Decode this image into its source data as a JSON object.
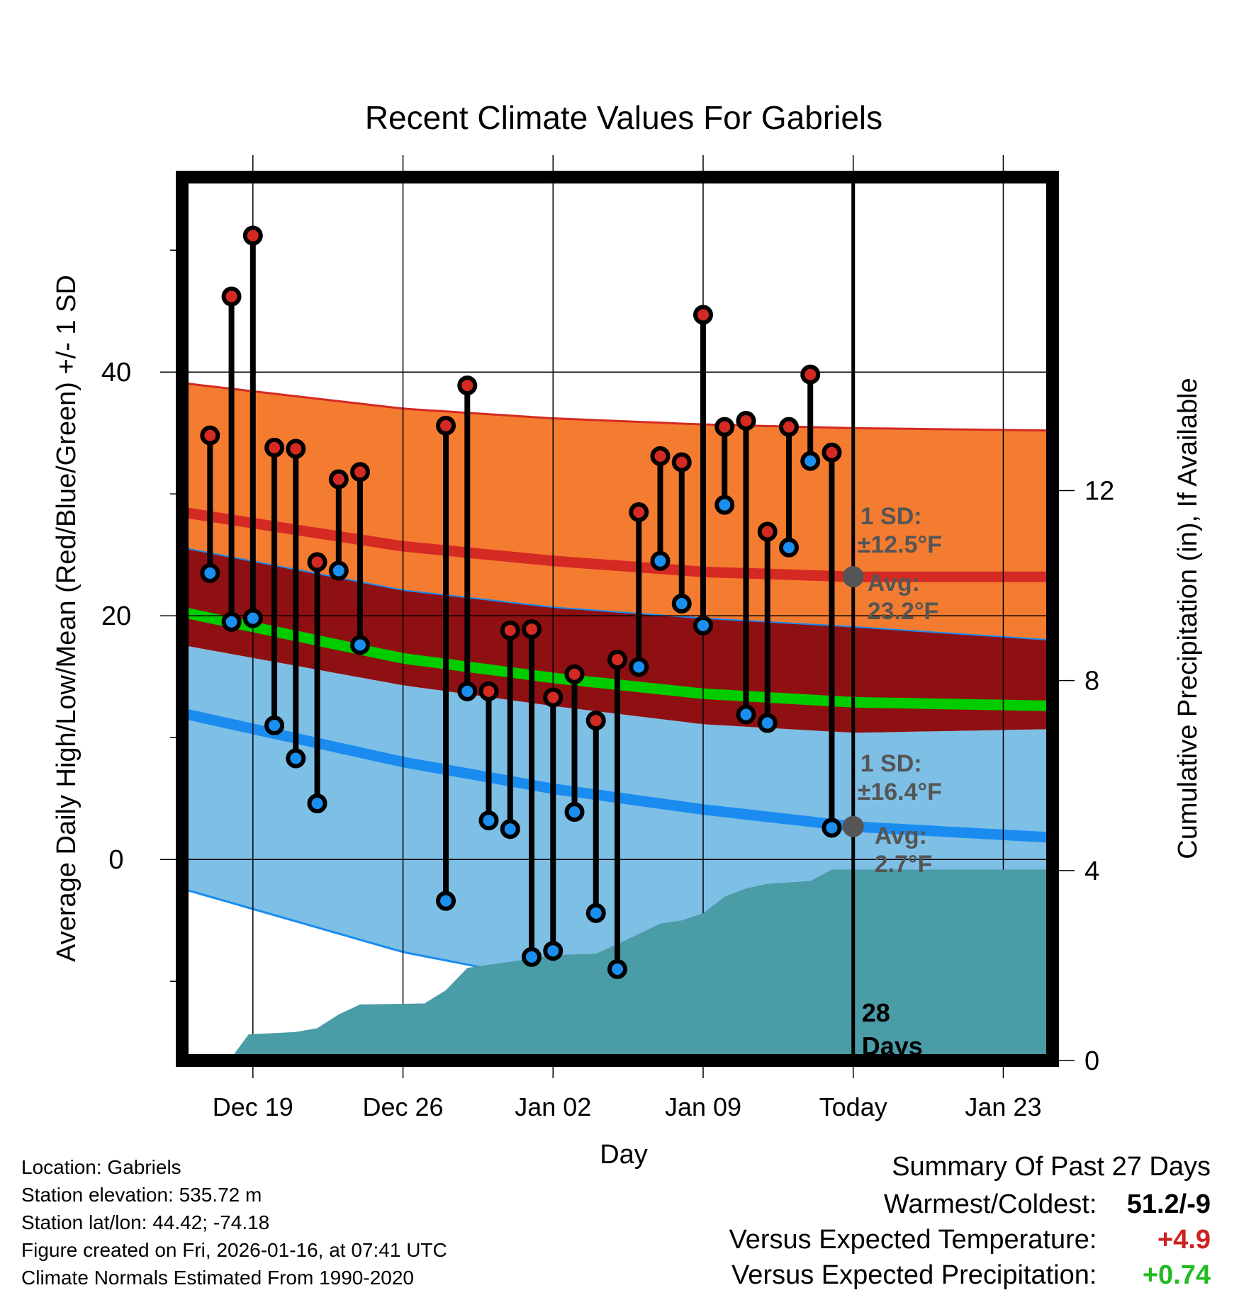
{
  "chart_data": {
    "type": "line",
    "title": "Recent Climate Values For Gabriels",
    "xlabel": "Day",
    "ylabel_left": "Average Daily High/Low/Mean (Red/Blue/Green) +/- 1 SD",
    "ylabel_right": "Cumulative Precipitation (in), If Available",
    "x_day_range": [
      -3.3,
      37.3
    ],
    "ylim_temp": [
      -16.5,
      56
    ],
    "ylim_precip": [
      0,
      18.6
    ],
    "x_ticks": [
      {
        "day": 0,
        "label": "Dec 19"
      },
      {
        "day": 7,
        "label": "Dec 26"
      },
      {
        "day": 14,
        "label": "Jan 02"
      },
      {
        "day": 21,
        "label": "Jan 09"
      },
      {
        "day": 28,
        "label": "Today"
      },
      {
        "day": 35,
        "label": "Jan 23"
      }
    ],
    "y_ticks_left": [
      0,
      20,
      40
    ],
    "y_minor_left": [
      -10,
      10,
      30,
      50
    ],
    "y_ticks_right": [
      0,
      4,
      8,
      12
    ],
    "normals": {
      "days": [
        -3.3,
        7,
        14,
        21,
        28,
        37.3
      ],
      "high_mean": [
        28.5,
        25.7,
        24.5,
        23.6,
        23.2,
        23.2
      ],
      "high_upper": [
        39.1,
        37.0,
        36.2,
        35.7,
        35.4,
        35.2
      ],
      "mean": [
        20.3,
        16.5,
        14.9,
        13.6,
        12.9,
        12.6
      ],
      "low_mean": [
        12.0,
        8.0,
        5.8,
        4.1,
        2.7,
        1.8
      ],
      "low_lower": [
        -2.4,
        -7.6,
        -10.0,
        -11.5,
        -12.6,
        -13.3
      ],
      "high_lower": [
        17.6,
        14.3,
        12.6,
        11.1,
        10.4,
        10.7
      ],
      "low_upper": [
        25.6,
        22.1,
        20.7,
        19.8,
        19.1,
        18.0
      ]
    },
    "observations": [
      {
        "day": -2,
        "high": 34.8,
        "low": 23.5
      },
      {
        "day": -1,
        "high": 46.2,
        "low": 19.5
      },
      {
        "day": 0,
        "high": 51.2,
        "low": 19.8
      },
      {
        "day": 1,
        "high": 33.8,
        "low": 11.0
      },
      {
        "day": 2,
        "high": 33.7,
        "low": 8.3
      },
      {
        "day": 3,
        "high": 24.4,
        "low": 4.6
      },
      {
        "day": 4,
        "high": 31.2,
        "low": 23.7
      },
      {
        "day": 5,
        "high": 31.8,
        "low": 17.6
      },
      {
        "day": 9,
        "high": 35.6,
        "low": -3.4
      },
      {
        "day": 10,
        "high": 38.9,
        "low": 13.8
      },
      {
        "day": 11,
        "high": 13.8,
        "low": 3.2
      },
      {
        "day": 12,
        "high": 18.8,
        "low": 2.5
      },
      {
        "day": 13,
        "high": 18.9,
        "low": -8.0
      },
      {
        "day": 14,
        "high": 13.3,
        "low": -7.5
      },
      {
        "day": 15,
        "high": 15.2,
        "low": 3.9
      },
      {
        "day": 16,
        "high": 11.4,
        "low": -4.4
      },
      {
        "day": 17,
        "high": 16.4,
        "low": -9.0
      },
      {
        "day": 18,
        "high": 28.5,
        "low": 15.8
      },
      {
        "day": 19,
        "high": 33.1,
        "low": 24.5
      },
      {
        "day": 20,
        "high": 32.6,
        "low": 21.0
      },
      {
        "day": 21,
        "high": 44.7,
        "low": 19.2
      },
      {
        "day": 22,
        "high": 35.5,
        "low": 29.1
      },
      {
        "day": 23,
        "high": 36.0,
        "low": 11.9
      },
      {
        "day": 24,
        "high": 26.9,
        "low": 11.2
      },
      {
        "day": 25,
        "high": 35.5,
        "low": 25.6
      },
      {
        "day": 26,
        "high": 39.8,
        "low": 32.7
      },
      {
        "day": 27,
        "high": 33.4,
        "low": 2.6
      }
    ],
    "precip_cumulative": [
      {
        "day": -1.1,
        "in": 0
      },
      {
        "day": -0.2,
        "in": 0.55
      },
      {
        "day": 2,
        "in": 0.6
      },
      {
        "day": 3,
        "in": 0.68
      },
      {
        "day": 4,
        "in": 0.97
      },
      {
        "day": 5,
        "in": 1.18
      },
      {
        "day": 8,
        "in": 1.2
      },
      {
        "day": 9,
        "in": 1.48
      },
      {
        "day": 10,
        "in": 1.95
      },
      {
        "day": 12,
        "in": 2.08
      },
      {
        "day": 14,
        "in": 2.22
      },
      {
        "day": 16,
        "in": 2.25
      },
      {
        "day": 17,
        "in": 2.45
      },
      {
        "day": 19,
        "in": 2.88
      },
      {
        "day": 20,
        "in": 2.95
      },
      {
        "day": 21,
        "in": 3.1
      },
      {
        "day": 22,
        "in": 3.45
      },
      {
        "day": 23,
        "in": 3.62
      },
      {
        "day": 24,
        "in": 3.72
      },
      {
        "day": 26,
        "in": 3.78
      },
      {
        "day": 27,
        "in": 4.02
      },
      {
        "day": 28,
        "in": 4.02
      },
      {
        "day": 37.3,
        "in": 4.02
      }
    ],
    "today": {
      "day": 28,
      "label_count": "28",
      "label_unit": "Days",
      "high_sd_label": "1 SD:",
      "high_sd_value": "±12.5°F",
      "high_avg_label": "Avg:",
      "high_avg_value": "23.2°F",
      "high_avg": 23.2,
      "low_sd_label": "1 SD:",
      "low_sd_value": "±16.4°F",
      "low_avg_label": "Avg:",
      "low_avg_value": "2.7°F",
      "low_avg": 2.7
    },
    "colors": {
      "high_band": "#f47c30",
      "high_line": "#d42a23",
      "overlap_band": "#8f1012",
      "mean_line": "#00cc00",
      "low_band": "#7ebfe6",
      "low_line": "#1a8cf0",
      "precip": "#4a9ca6",
      "high_point": "#d42a23",
      "low_point": "#1a8ff0",
      "annotation": "#555555"
    }
  },
  "footer": {
    "location": "Location: Gabriels",
    "elevation": "Station elevation: 535.72 m",
    "latlon": "Station lat/lon: 44.42; -74.18",
    "created": "Figure created on Fri, 2026-01-16, at 07:41 UTC",
    "normals": "Climate Normals Estimated From 1990-2020"
  },
  "summary": {
    "title": "Summary Of Past 27 Days",
    "warmest_label": "Warmest/Coldest:",
    "warmest_value": "51.2/-9",
    "temp_label": "Versus Expected Temperature:",
    "temp_value": "+4.9",
    "temp_color": "#cc2222",
    "precip_label": "Versus Expected Precipitation:",
    "precip_value": "+0.74",
    "precip_color": "#22bb22"
  }
}
